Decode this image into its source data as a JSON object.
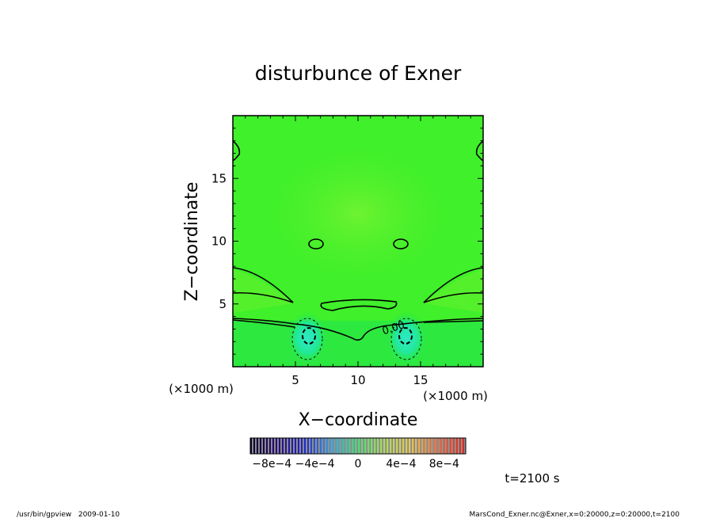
{
  "chart_data": {
    "type": "heatmap",
    "title": "disturbunce of Exner",
    "xlabel": "X−coordinate",
    "ylabel": "Z−coordinate",
    "x_unit": "(×1000 m)",
    "y_unit": "(×1000 m)",
    "xlim": [
      0,
      20
    ],
    "ylim": [
      0,
      20
    ],
    "xticks": [
      5,
      10,
      15
    ],
    "yticks": [
      5,
      10,
      15
    ],
    "x_tick_labels": [
      "5",
      "10",
      "15"
    ],
    "y_tick_labels": [
      "5",
      "10",
      "15"
    ],
    "contour_label": "0.00",
    "colorbar": {
      "range": [
        -0.001,
        0.001
      ],
      "tick_labels": [
        "−8e−4",
        "−4e−4",
        "0",
        "4e−4",
        "8e−4"
      ]
    },
    "time_label": "t=2100 s",
    "colors": {
      "field_base": "#3ff02a",
      "field_light": "#5cf22e",
      "field_lower": "#28e840",
      "anomaly": "#20e8a0",
      "anomaly_core": "#2ee8c8"
    }
  },
  "footer": {
    "left": "/usr/bin/gpview   2009-01-10",
    "right": "MarsCond_Exner.nc@Exner,x=0:20000,z=0:20000,t=2100"
  }
}
